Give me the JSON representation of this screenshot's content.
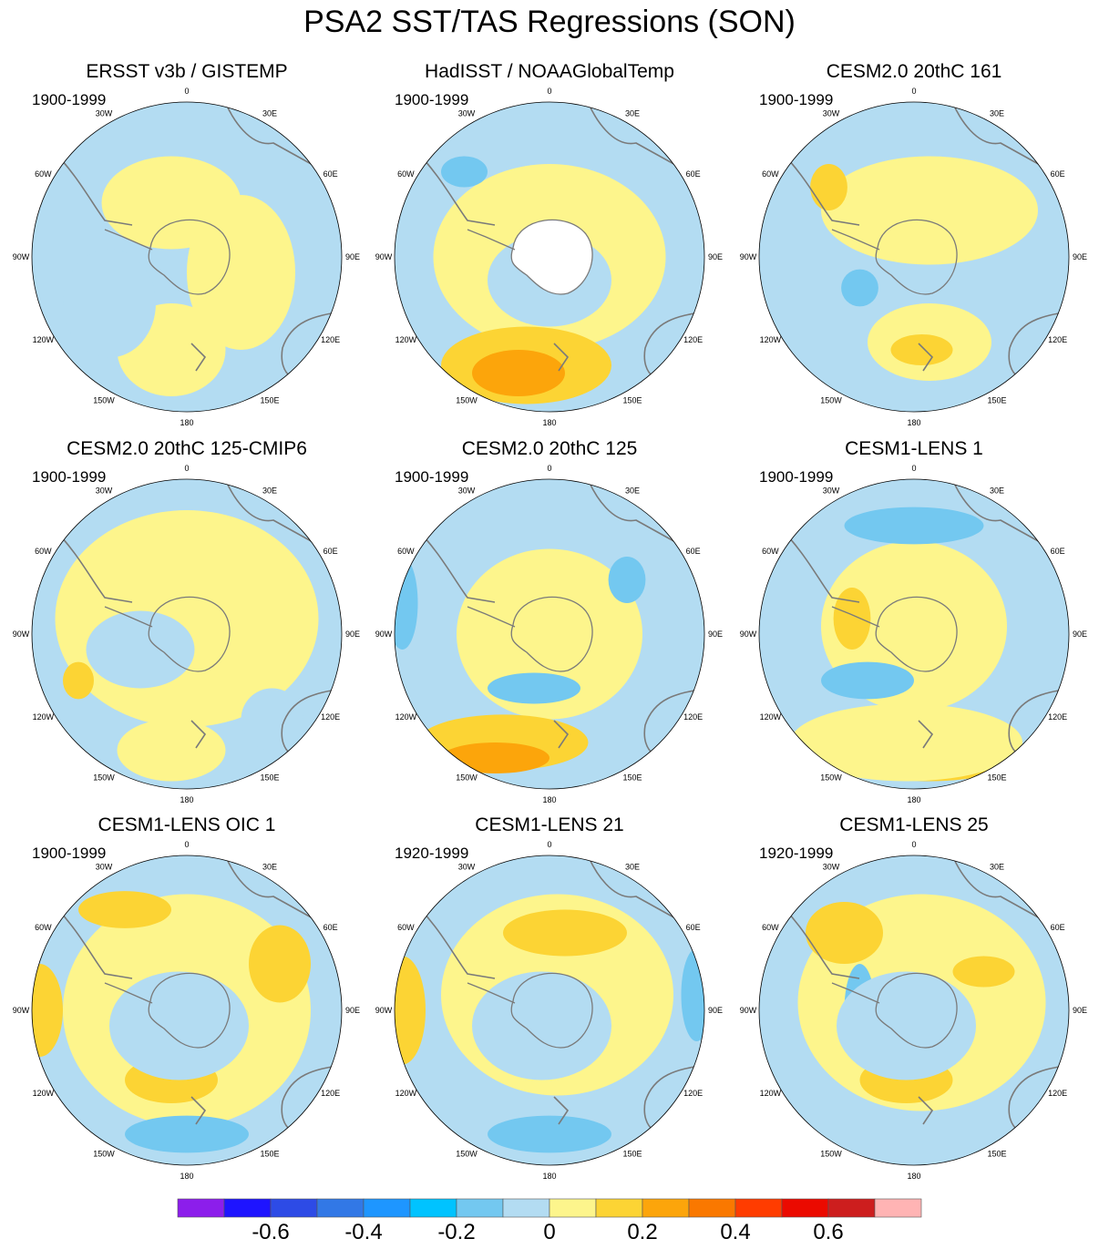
{
  "title": "PSA2 SST/TAS Regressions (SON)",
  "colors": {
    "background": "#ffffff",
    "ocean_neg_light": "#b3dcf2",
    "ocean_neg_mid": "#73c8f0",
    "ocean_neg_strong": "#1ebeff",
    "pos_light": "#fdf58c",
    "pos_mid": "#fcd434",
    "pos_strong": "#fca50b",
    "land_mask": "#ffffff",
    "coast": "#7a7a7a"
  },
  "longitude_labels": [
    "0",
    "30E",
    "60E",
    "90E",
    "120E",
    "150E",
    "180",
    "150W",
    "120W",
    "90W",
    "60W",
    "30W"
  ],
  "panels": [
    {
      "title": "ERSST v3b / GISTEMP",
      "period": "1900-1999"
    },
    {
      "title": "HadISST / NOAAGlobalTemp",
      "period": "1900-1999"
    },
    {
      "title": "CESM2.0 20thC 161",
      "period": "1900-1999"
    },
    {
      "title": "CESM2.0 20thC 125-CMIP6",
      "period": "1900-1999"
    },
    {
      "title": "CESM2.0 20thC 125",
      "period": "1900-1999"
    },
    {
      "title": "CESM1-LENS 1",
      "period": "1900-1999"
    },
    {
      "title": "CESM1-LENS OIC 1",
      "period": "1900-1999"
    },
    {
      "title": "CESM1-LENS 21",
      "period": "1920-1999"
    },
    {
      "title": "CESM1-LENS 25",
      "period": "1920-1999"
    }
  ],
  "colorbar": {
    "colors": [
      "#8c1eeb",
      "#1e14ff",
      "#2d4be6",
      "#3278e6",
      "#1e96ff",
      "#00c3ff",
      "#73c8f0",
      "#b3dcf2",
      "#fdf58c",
      "#fcd434",
      "#fca50b",
      "#fa7800",
      "#ff3c00",
      "#eb0a00",
      "#cd1e1e",
      "#ffb4b4"
    ],
    "tick_labels": [
      "-0.6",
      "-0.4",
      "-0.2",
      "0",
      "0.2",
      "0.4",
      "0.6"
    ]
  }
}
